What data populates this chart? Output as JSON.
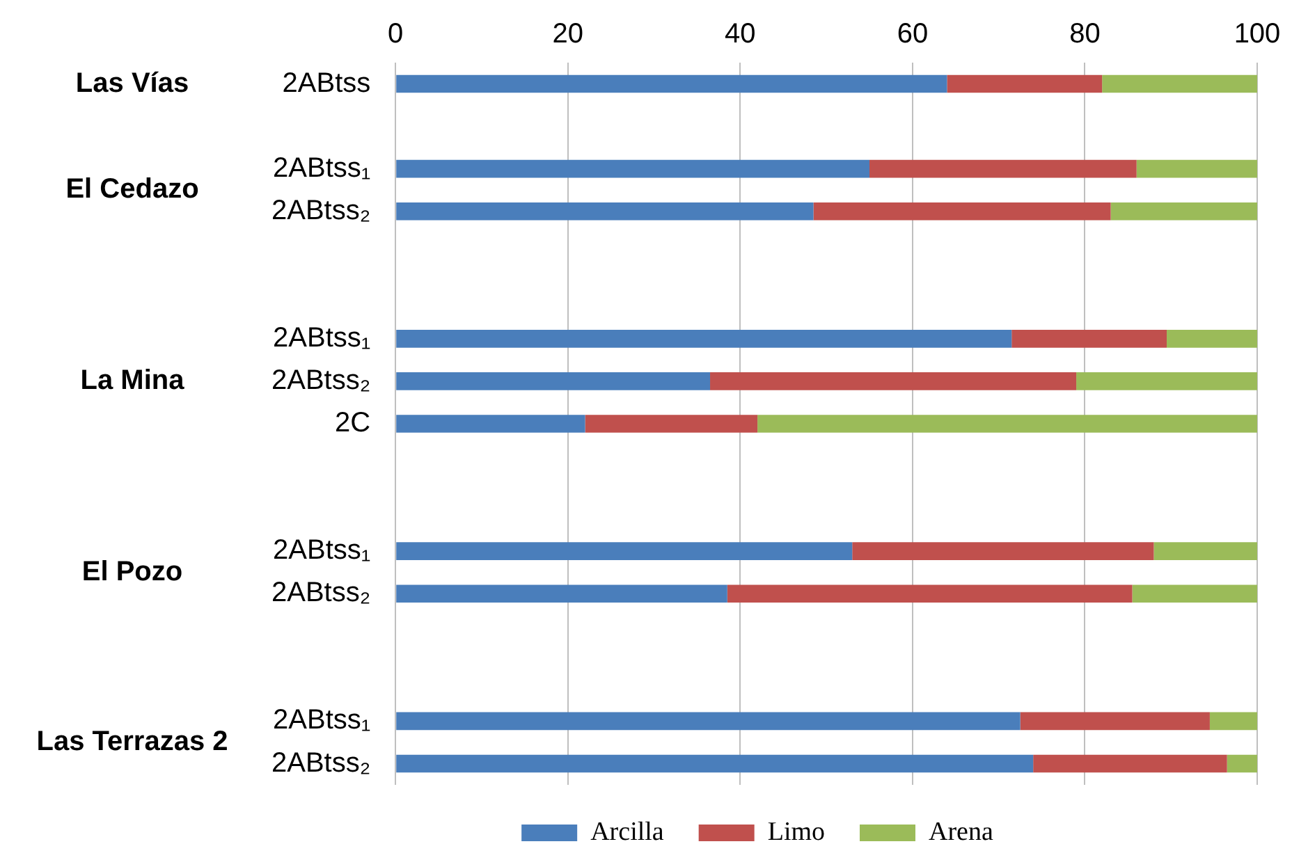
{
  "chart_data": {
    "type": "bar",
    "orientation": "horizontal",
    "stacked": true,
    "categories": [
      "2ABtss",
      null,
      "2ABtss₁",
      "2ABtss₂",
      null,
      null,
      "2ABtss₁",
      "2ABtss₂",
      "2C",
      null,
      null,
      "2ABtss₁",
      "2ABtss₂",
      null,
      null,
      "2ABtss₁",
      "2ABtss₂"
    ],
    "series": [
      {
        "name": "Arcilla",
        "color": "#4a7ebb",
        "values": [
          64,
          null,
          55,
          48.5,
          null,
          null,
          71.5,
          36.5,
          22,
          null,
          null,
          53,
          38.5,
          null,
          null,
          72.5,
          74
        ]
      },
      {
        "name": "Limo",
        "color": "#c0504d",
        "values": [
          18,
          null,
          31,
          34.5,
          null,
          null,
          18,
          42.5,
          20,
          null,
          null,
          35,
          47,
          null,
          null,
          22,
          22.5
        ]
      },
      {
        "name": "Arena",
        "color": "#9bbb59",
        "values": [
          18,
          null,
          14,
          17,
          null,
          null,
          10.5,
          21,
          58,
          null,
          null,
          12,
          14.5,
          null,
          null,
          5.5,
          3.5
        ]
      }
    ],
    "xlim": [
      0,
      100
    ],
    "xticks": [
      0,
      20,
      40,
      60,
      80,
      100
    ],
    "grid": "x",
    "legend": "bottom",
    "annotations": [
      "Las Vías",
      "El Cedazo",
      "La Mina",
      "El Pozo",
      "Las Terrazas 2"
    ]
  }
}
